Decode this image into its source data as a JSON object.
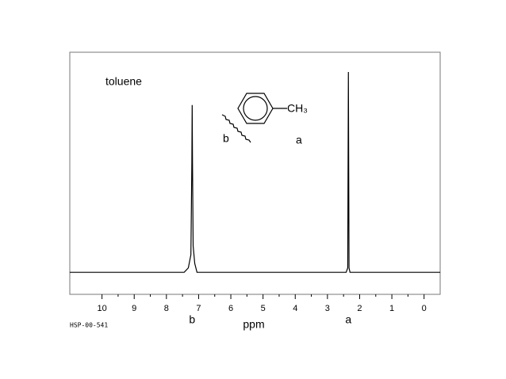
{
  "chart_data": {
    "type": "line",
    "title": "toluene",
    "xlabel": "ppm",
    "code": "HSP-00-541",
    "group_label": "CH₃",
    "structure_labels": [
      "b",
      "a"
    ],
    "peak_labels": [
      "b",
      "a"
    ],
    "xlim": [
      11,
      -0.5
    ],
    "xticks": [
      10,
      9,
      8,
      7,
      6,
      5,
      4,
      3,
      2,
      1,
      0
    ],
    "ylim": [
      -10,
      100
    ],
    "color": "#000000",
    "x": [
      11,
      7.45,
      7.32,
      7.24,
      7.21,
      7.2,
      7.19,
      7.17,
      7.12,
      7.05,
      2.42,
      2.37,
      2.35,
      2.33,
      2.3,
      -0.5
    ],
    "values": [
      0,
      0,
      2,
      8,
      50,
      76,
      50,
      12,
      4,
      0,
      0,
      2,
      91,
      2,
      0,
      0
    ]
  }
}
